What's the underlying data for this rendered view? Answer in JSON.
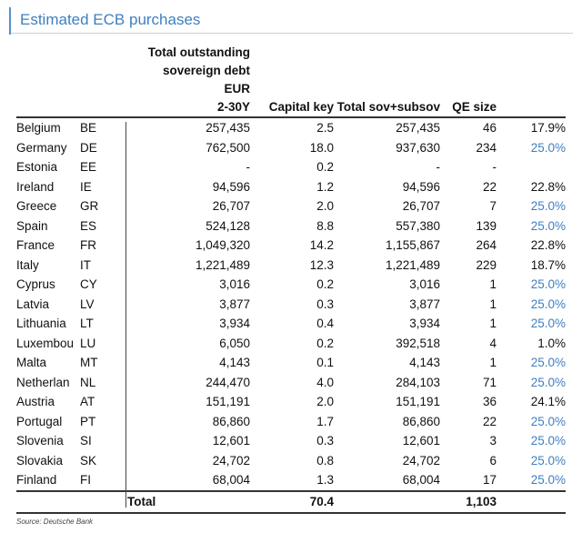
{
  "title": "Estimated ECB purchases",
  "headers": {
    "debt_line1": "Total outstanding",
    "debt_line2": "sovereign debt",
    "debt_line3": "EUR",
    "debt_line4": "2-30Y",
    "capital_key": "Capital key",
    "total_sov": "Total sov+subsov",
    "qe_size": "QE size"
  },
  "rows": [
    {
      "country": "Belgium",
      "code": "BE",
      "debt": "257,435",
      "cap": "2.5",
      "sov": "257,435",
      "qe": "46",
      "pct": "17.9%",
      "blue": false
    },
    {
      "country": "Germany",
      "code": "DE",
      "debt": "762,500",
      "cap": "18.0",
      "sov": "937,630",
      "qe": "234",
      "pct": "25.0%",
      "blue": true
    },
    {
      "country": "Estonia",
      "code": "EE",
      "debt": "-",
      "cap": "0.2",
      "sov": "-",
      "qe": "-",
      "pct": "",
      "blue": false
    },
    {
      "country": "Ireland",
      "code": "IE",
      "debt": "94,596",
      "cap": "1.2",
      "sov": "94,596",
      "qe": "22",
      "pct": "22.8%",
      "blue": false
    },
    {
      "country": "Greece",
      "code": "GR",
      "debt": "26,707",
      "cap": "2.0",
      "sov": "26,707",
      "qe": "7",
      "pct": "25.0%",
      "blue": true
    },
    {
      "country": "Spain",
      "code": "ES",
      "debt": "524,128",
      "cap": "8.8",
      "sov": "557,380",
      "qe": "139",
      "pct": "25.0%",
      "blue": true
    },
    {
      "country": "France",
      "code": "FR",
      "debt": "1,049,320",
      "cap": "14.2",
      "sov": "1,155,867",
      "qe": "264",
      "pct": "22.8%",
      "blue": false
    },
    {
      "country": "Italy",
      "code": "IT",
      "debt": "1,221,489",
      "cap": "12.3",
      "sov": "1,221,489",
      "qe": "229",
      "pct": "18.7%",
      "blue": false
    },
    {
      "country": "Cyprus",
      "code": "CY",
      "debt": "3,016",
      "cap": "0.2",
      "sov": "3,016",
      "qe": "1",
      "pct": "25.0%",
      "blue": true
    },
    {
      "country": "Latvia",
      "code": "LV",
      "debt": "3,877",
      "cap": "0.3",
      "sov": "3,877",
      "qe": "1",
      "pct": "25.0%",
      "blue": true
    },
    {
      "country": "Lithuania",
      "code": "LT",
      "debt": "3,934",
      "cap": "0.4",
      "sov": "3,934",
      "qe": "1",
      "pct": "25.0%",
      "blue": true
    },
    {
      "country": "Luxembou",
      "code": "LU",
      "debt": "6,050",
      "cap": "0.2",
      "sov": "392,518",
      "qe": "4",
      "pct": "1.0%",
      "blue": false
    },
    {
      "country": "Malta",
      "code": "MT",
      "debt": "4,143",
      "cap": "0.1",
      "sov": "4,143",
      "qe": "1",
      "pct": "25.0%",
      "blue": true
    },
    {
      "country": "Netherlan",
      "code": "NL",
      "debt": "244,470",
      "cap": "4.0",
      "sov": "284,103",
      "qe": "71",
      "pct": "25.0%",
      "blue": true
    },
    {
      "country": "Austria",
      "code": "AT",
      "debt": "151,191",
      "cap": "2.0",
      "sov": "151,191",
      "qe": "36",
      "pct": "24.1%",
      "blue": false
    },
    {
      "country": "Portugal",
      "code": "PT",
      "debt": "86,860",
      "cap": "1.7",
      "sov": "86,860",
      "qe": "22",
      "pct": "25.0%",
      "blue": true
    },
    {
      "country": "Slovenia",
      "code": "SI",
      "debt": "12,601",
      "cap": "0.3",
      "sov": "12,601",
      "qe": "3",
      "pct": "25.0%",
      "blue": true
    },
    {
      "country": "Slovakia",
      "code": "SK",
      "debt": "24,702",
      "cap": "0.8",
      "sov": "24,702",
      "qe": "6",
      "pct": "25.0%",
      "blue": true
    },
    {
      "country": "Finland",
      "code": "FI",
      "debt": "68,004",
      "cap": "1.3",
      "sov": "68,004",
      "qe": "17",
      "pct": "25.0%",
      "blue": true
    }
  ],
  "total": {
    "label": "Total",
    "cap": "70.4",
    "qe": "1,103"
  },
  "source": "Source: Deutsche Bank",
  "colors": {
    "accent": "#3f7fc0"
  }
}
